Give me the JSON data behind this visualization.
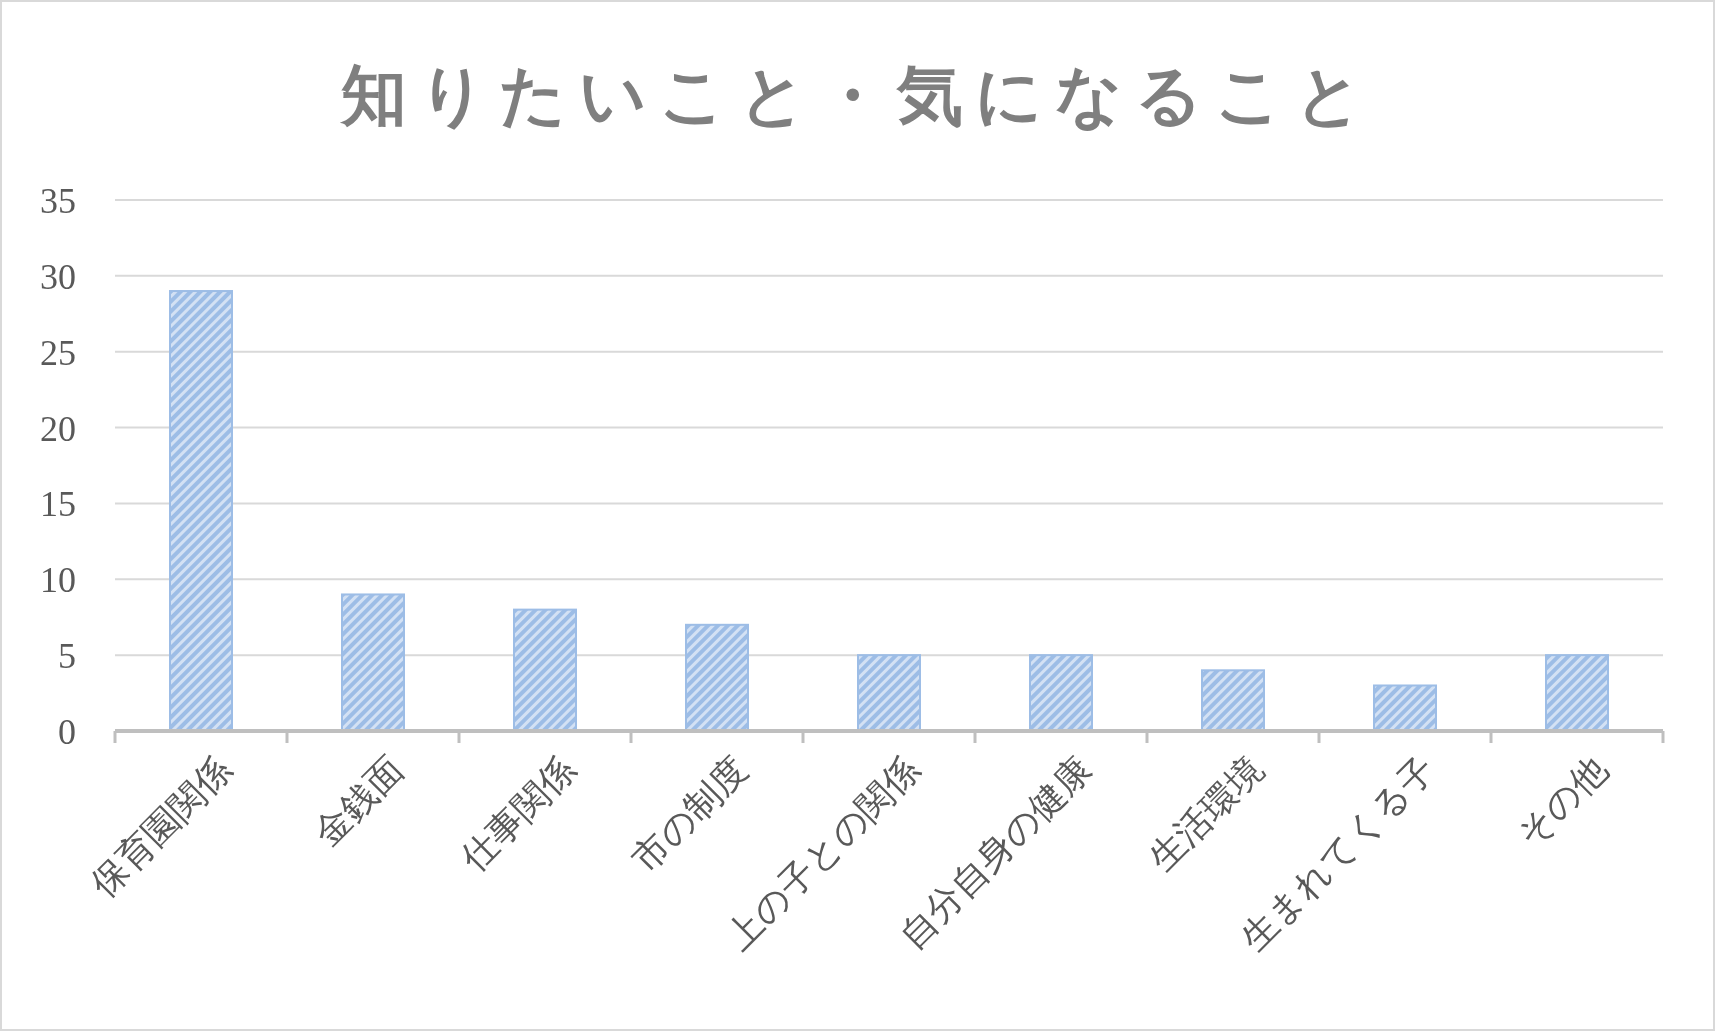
{
  "chart_data": {
    "type": "bar",
    "title": "知りたいこと・気になること",
    "categories": [
      "保育園関係",
      "金銭面",
      "仕事関係",
      "市の制度",
      "上の子との関係",
      "自分自身の健康",
      "生活環境",
      "生まれてくる子",
      "その他"
    ],
    "values": [
      29,
      9,
      8,
      7,
      5,
      5,
      4,
      3,
      5
    ],
    "color": "#9dbde6",
    "ylim": [
      0,
      35
    ],
    "yticks": [
      0,
      5,
      10,
      15,
      20,
      25,
      30,
      35
    ],
    "grid": "y"
  }
}
